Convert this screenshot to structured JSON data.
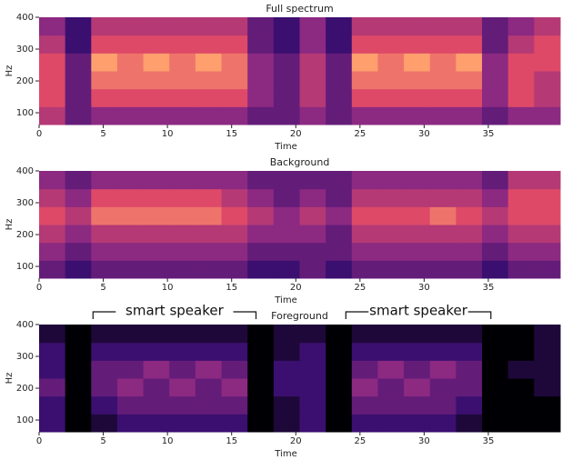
{
  "chart_data": [
    {
      "type": "heatmap",
      "title": "Full spectrum",
      "xlabel": "Time",
      "ylabel": "Hz",
      "xlim": [
        0,
        40.6
      ],
      "ylim": [
        63,
        400
      ],
      "xticks": [
        0,
        5,
        10,
        15,
        20,
        25,
        30,
        35
      ],
      "yticks": [
        100,
        200,
        300,
        400
      ],
      "colormap": [
        "#000004",
        "#3b0f70",
        "#8c2981",
        "#de4968",
        "#fe9f6d",
        "#fcfdbf"
      ],
      "zlim": [
        0,
        10
      ],
      "values": [
        [
          5,
          3,
          4,
          4,
          4,
          4,
          4,
          4,
          3,
          3,
          4,
          3,
          4,
          4,
          4,
          4,
          4,
          3,
          4,
          4
        ],
        [
          6,
          3,
          6,
          6,
          6,
          6,
          6,
          6,
          4,
          3,
          5,
          3,
          6,
          6,
          6,
          6,
          6,
          4,
          6,
          5
        ],
        [
          6,
          3,
          7,
          7,
          7,
          7,
          7,
          7,
          4,
          3,
          5,
          3,
          7,
          7,
          7,
          7,
          7,
          4,
          6,
          5
        ],
        [
          6,
          3,
          8,
          7,
          8,
          7,
          8,
          7,
          4,
          3,
          5,
          3,
          8,
          7,
          8,
          7,
          8,
          4,
          6,
          6
        ],
        [
          5,
          2,
          6,
          6,
          6,
          6,
          6,
          6,
          3,
          2,
          4,
          2,
          6,
          6,
          6,
          6,
          6,
          3,
          5,
          6
        ],
        [
          4,
          2,
          5,
          5,
          5,
          5,
          5,
          5,
          3,
          2,
          4,
          2,
          5,
          5,
          5,
          5,
          5,
          3,
          4,
          5
        ]
      ]
    },
    {
      "type": "heatmap",
      "title": "Background",
      "xlabel": "Time",
      "ylabel": "Hz",
      "xlim": [
        0,
        40.6
      ],
      "ylim": [
        63,
        400
      ],
      "xticks": [
        0,
        5,
        10,
        15,
        20,
        25,
        30,
        35
      ],
      "yticks": [
        100,
        200,
        300,
        400
      ],
      "colormap": [
        "#000004",
        "#3b0f70",
        "#8c2981",
        "#de4968",
        "#fe9f6d",
        "#fcfdbf"
      ],
      "zlim": [
        0,
        10
      ],
      "values": [
        [
          3,
          2,
          3,
          3,
          3,
          3,
          3,
          3,
          2,
          2,
          3,
          2,
          3,
          3,
          3,
          3,
          3,
          2,
          3,
          3
        ],
        [
          4,
          3,
          4,
          4,
          4,
          4,
          4,
          4,
          3,
          3,
          3,
          3,
          4,
          4,
          4,
          4,
          4,
          3,
          4,
          4
        ],
        [
          5,
          4,
          5,
          5,
          5,
          5,
          5,
          5,
          4,
          4,
          4,
          3,
          5,
          5,
          5,
          5,
          5,
          4,
          5,
          5
        ],
        [
          6,
          5,
          7,
          7,
          7,
          7,
          7,
          6,
          5,
          4,
          5,
          4,
          6,
          6,
          6,
          7,
          6,
          5,
          6,
          6
        ],
        [
          5,
          4,
          6,
          6,
          6,
          6,
          6,
          5,
          4,
          3,
          4,
          3,
          5,
          5,
          5,
          5,
          5,
          4,
          6,
          6
        ],
        [
          4,
          3,
          4,
          4,
          4,
          4,
          4,
          4,
          3,
          3,
          3,
          3,
          4,
          4,
          4,
          4,
          4,
          3,
          5,
          5
        ]
      ]
    },
    {
      "type": "heatmap",
      "title": "Foreground",
      "xlabel": "Time",
      "ylabel": "Hz",
      "xlim": [
        0,
        40.6
      ],
      "ylim": [
        63,
        400
      ],
      "xticks": [
        0,
        5,
        10,
        15,
        20,
        25,
        30,
        35
      ],
      "yticks": [
        100,
        200,
        300,
        400
      ],
      "colormap": [
        "#000004",
        "#3b0f70",
        "#8c2981",
        "#de4968",
        "#fe9f6d",
        "#fcfdbf"
      ],
      "zlim": [
        0,
        10
      ],
      "values": [
        [
          2,
          0,
          1,
          2,
          2,
          2,
          2,
          2,
          0,
          1,
          2,
          0,
          2,
          2,
          2,
          2,
          1,
          0,
          0,
          0
        ],
        [
          2,
          0,
          2,
          3,
          3,
          3,
          3,
          3,
          0,
          1,
          2,
          0,
          3,
          3,
          3,
          3,
          2,
          0,
          0,
          0
        ],
        [
          3,
          0,
          3,
          4,
          3,
          4,
          3,
          4,
          0,
          2,
          2,
          0,
          4,
          3,
          4,
          3,
          3,
          0,
          0,
          1
        ],
        [
          2,
          0,
          3,
          3,
          4,
          3,
          4,
          3,
          0,
          2,
          2,
          0,
          3,
          4,
          3,
          4,
          3,
          0,
          1,
          1
        ],
        [
          2,
          0,
          2,
          2,
          2,
          2,
          2,
          2,
          0,
          1,
          2,
          0,
          2,
          2,
          2,
          2,
          2,
          0,
          0,
          1
        ],
        [
          1,
          0,
          1,
          1,
          1,
          1,
          1,
          1,
          0,
          1,
          1,
          0,
          1,
          1,
          1,
          1,
          1,
          0,
          0,
          1
        ]
      ],
      "annotations": [
        {
          "text": "smart speaker",
          "x_span": [
            4.2,
            16.9
          ]
        },
        {
          "text": "smart speaker",
          "x_span": [
            23.9,
            35.2
          ]
        }
      ]
    }
  ]
}
